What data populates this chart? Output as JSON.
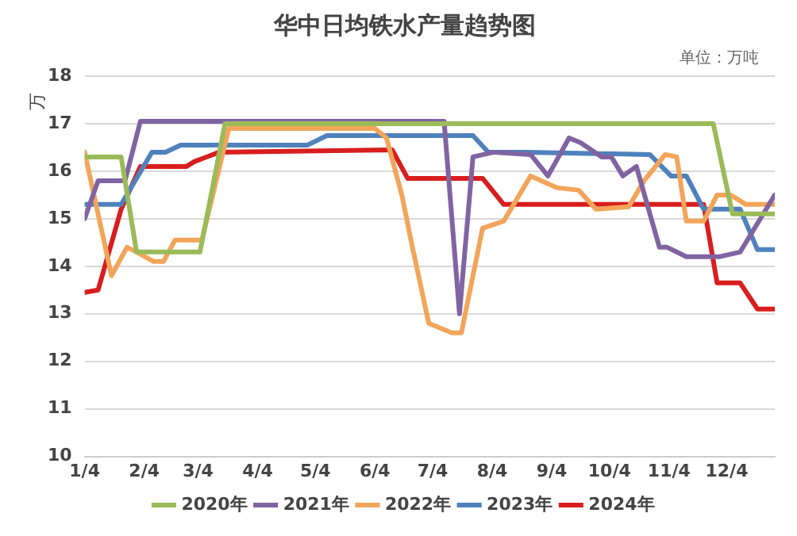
{
  "chart_data": {
    "type": "line",
    "title": "华中日均铁水产量趋势图",
    "ylabel": "万",
    "annotations": [
      "单位：万吨"
    ],
    "xlim": [
      "--01-04",
      "--12-29"
    ],
    "xticks": [
      {
        "value": "--01-04",
        "label": "1/4"
      },
      {
        "value": "--02-04",
        "label": "2/4"
      },
      {
        "value": "--03-04",
        "label": "3/4"
      },
      {
        "value": "--04-04",
        "label": "4/4"
      },
      {
        "value": "--05-04",
        "label": "5/4"
      },
      {
        "value": "--06-04",
        "label": "6/4"
      },
      {
        "value": "--07-04",
        "label": "7/4"
      },
      {
        "value": "--08-04",
        "label": "8/4"
      },
      {
        "value": "--09-04",
        "label": "9/4"
      },
      {
        "value": "--10-04",
        "label": "10/4"
      },
      {
        "value": "--11-04",
        "label": "11/4"
      },
      {
        "value": "--12-04",
        "label": "12/4"
      }
    ],
    "ylim": [
      10,
      18
    ],
    "yticks": [
      10,
      11,
      12,
      13,
      14,
      15,
      16,
      17,
      18
    ],
    "grid": "y",
    "legend": "bottom",
    "marker": "none",
    "line_style": "solid",
    "series": [
      {
        "name": "2020年",
        "color": "#9bbb59",
        "x": [
          "--01-04",
          "--01-23",
          "--01-31",
          "--03-05",
          "--03-18",
          "--11-27",
          "--12-07",
          "--12-29"
        ],
        "values": [
          16.3,
          16.3,
          14.3,
          14.3,
          17.0,
          17.0,
          15.1,
          15.1
        ]
      },
      {
        "name": "2021年",
        "color": "#8064a2",
        "x": [
          "--01-04",
          "--01-11",
          "--01-25",
          "--02-02",
          "--07-10",
          "--07-18",
          "--07-25",
          "--08-05",
          "--08-24",
          "--09-02",
          "--09-13",
          "--09-19",
          "--09-30",
          "--10-05",
          "--10-11",
          "--10-18",
          "--10-30",
          "--11-03",
          "--11-13",
          "--11-30",
          "--12-11",
          "--12-29"
        ],
        "values": [
          15.0,
          15.8,
          15.8,
          17.05,
          17.05,
          13.0,
          16.3,
          16.4,
          16.35,
          15.9,
          16.7,
          16.6,
          16.3,
          16.3,
          15.9,
          16.1,
          14.4,
          14.4,
          14.2,
          14.2,
          14.3,
          15.5
        ]
      },
      {
        "name": "2022年",
        "color": "#f2a55a",
        "x": [
          "--01-04",
          "--01-18",
          "--01-26",
          "--01-31",
          "--02-09",
          "--02-14",
          "--02-20",
          "--03-06",
          "--03-20",
          "--06-04",
          "--06-10",
          "--06-18",
          "--06-23",
          "--07-02",
          "--07-14",
          "--07-19",
          "--07-30",
          "--08-10",
          "--08-24",
          "--09-07",
          "--09-18",
          "--09-27",
          "--10-14",
          "--10-22",
          "--11-02",
          "--11-08",
          "--11-13",
          "--11-22",
          "--11-29",
          "--12-06",
          "--12-14",
          "--12-29"
        ],
        "values": [
          16.4,
          13.8,
          14.4,
          14.3,
          14.1,
          14.1,
          14.55,
          14.55,
          16.9,
          16.9,
          16.7,
          15.5,
          14.5,
          12.8,
          12.6,
          12.6,
          14.8,
          14.95,
          15.9,
          15.65,
          15.6,
          15.2,
          15.25,
          15.8,
          16.35,
          16.3,
          14.95,
          14.95,
          15.5,
          15.5,
          15.3,
          15.3
        ]
      },
      {
        "name": "2023年",
        "color": "#4f81bd",
        "x": [
          "--01-04",
          "--01-23",
          "--02-08",
          "--02-15",
          "--02-23",
          "--04-30",
          "--05-10",
          "--07-25",
          "--08-02",
          "--08-21",
          "--10-25",
          "--11-05",
          "--11-13",
          "--11-22",
          "--12-11",
          "--12-20",
          "--12-29"
        ],
        "values": [
          15.3,
          15.3,
          16.4,
          16.4,
          16.55,
          16.55,
          16.75,
          16.75,
          16.4,
          16.4,
          16.35,
          15.9,
          15.9,
          15.2,
          15.2,
          14.35,
          14.35
        ]
      },
      {
        "name": "2024年",
        "color": "#d81e1e",
        "x": [
          "--01-04",
          "--01-11",
          "--01-23",
          "--02-02",
          "--02-26",
          "--03-02",
          "--03-15",
          "--06-13",
          "--06-21",
          "--07-30",
          "--08-10",
          "--11-22",
          "--11-29",
          "--12-11",
          "--12-20",
          "--12-29"
        ],
        "values": [
          13.45,
          13.5,
          15.2,
          16.1,
          16.1,
          16.2,
          16.4,
          16.45,
          15.85,
          15.85,
          15.3,
          15.3,
          13.65,
          13.65,
          13.1,
          13.1
        ]
      }
    ]
  }
}
